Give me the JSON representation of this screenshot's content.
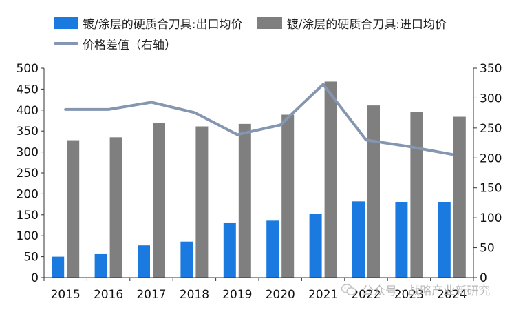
{
  "legend": {
    "series1": "镀/涂层的硬质合刀具:出口均价",
    "series2": "镀/涂层的硬质合刀具:进口均价",
    "series3": "价格差值（右轴）"
  },
  "watermark": {
    "text": "公众号 · 战略产业新研究",
    "icon": "wechat-icon"
  },
  "colors": {
    "export": "#1a7ae0",
    "import": "#7f7f7f",
    "diff": "#8496b0"
  },
  "chart_data": {
    "type": "bar",
    "categories": [
      "2015",
      "2016",
      "2017",
      "2018",
      "2019",
      "2020",
      "2021",
      "2022",
      "2023",
      "2024"
    ],
    "series": [
      {
        "name": "镀/涂层的硬质合刀具:出口均价",
        "type": "bar",
        "axis": "left",
        "values": [
          50,
          56,
          77,
          86,
          130,
          136,
          152,
          182,
          180,
          180
        ]
      },
      {
        "name": "镀/涂层的硬质合刀具:进口均价",
        "type": "bar",
        "axis": "left",
        "values": [
          328,
          335,
          369,
          361,
          367,
          389,
          468,
          411,
          396,
          384
        ]
      },
      {
        "name": "价格差值（右轴）",
        "type": "line",
        "axis": "right",
        "values": [
          281,
          281,
          293,
          276,
          239,
          255,
          323,
          230,
          219,
          206
        ]
      }
    ],
    "ylim_left": [
      0,
      500
    ],
    "yticks_left": [
      "0",
      "50",
      "100",
      "150",
      "200",
      "250",
      "300",
      "350",
      "400",
      "450",
      "500"
    ],
    "ylim_right": [
      0,
      350
    ],
    "yticks_right": [
      "0",
      "50",
      "100",
      "150",
      "200",
      "250",
      "300",
      "350"
    ],
    "grid": false,
    "legend_position": "top"
  }
}
